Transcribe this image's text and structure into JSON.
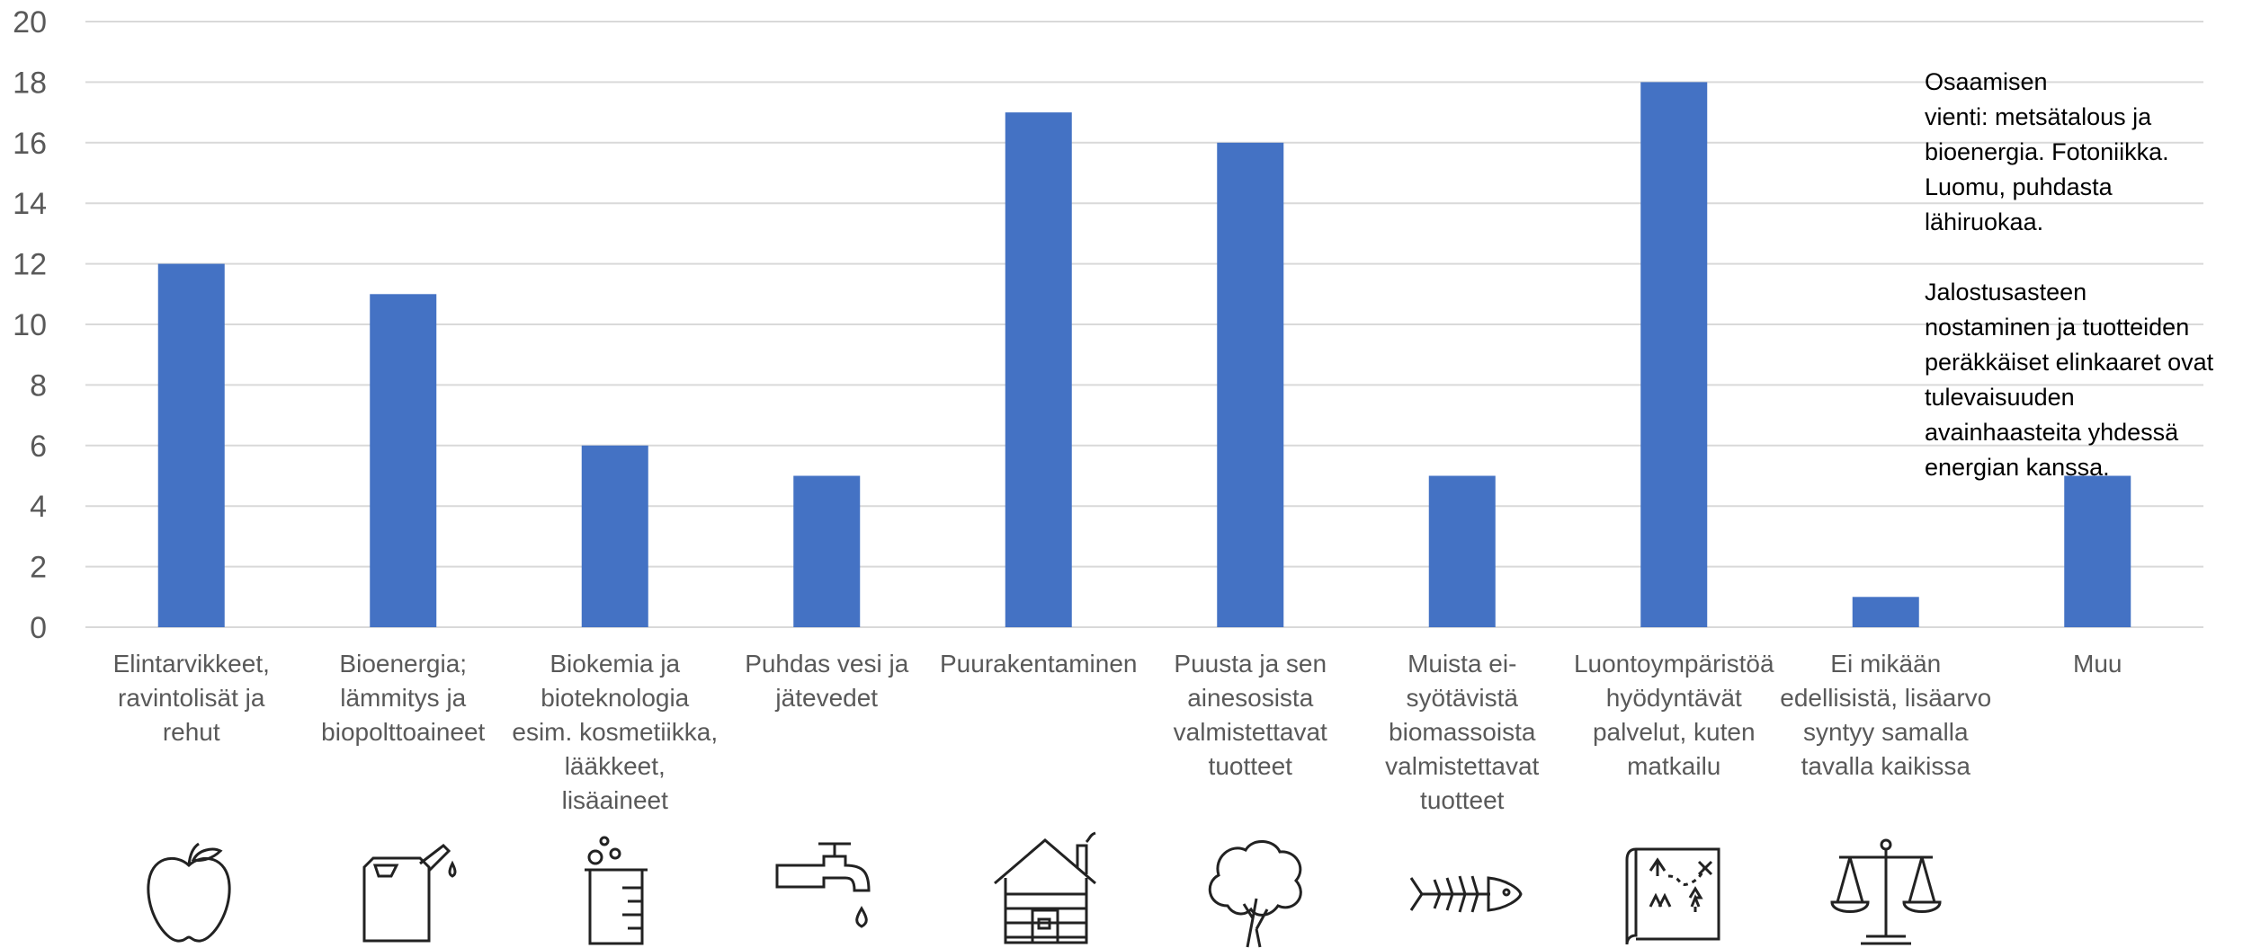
{
  "chart_data": {
    "type": "bar",
    "categories": [
      "Elintarvikkeet, ravintolisät ja rehut",
      "Bioenergia; lämmitys ja biopolttoaineet",
      "Biokemia ja bioteknologia esim. kosmetiikka, lääkkeet, lisäaineet",
      "Puhdas vesi ja jätevedet",
      "Puurakentaminen",
      "Puusta ja sen ainesosista valmistettavat tuotteet",
      "Muista ei-syötävistä biomassoista valmistettavat tuotteet",
      "Luontoympäristöä hyödyntävät palvelut, kuten matkailu",
      "Ei mikään edellisistä, lisäarvo syntyy samalla tavalla kaikissa",
      "Muu"
    ],
    "category_label_lines": [
      [
        "Elintarvikkeet,",
        "ravintolisät ja",
        "rehut"
      ],
      [
        "Bioenergia;",
        "lämmitys ja",
        "biopolttoaineet"
      ],
      [
        "Biokemia ja",
        "bioteknologia",
        "esim. kosmetiikka,",
        "lääkkeet,",
        "lisäaineet"
      ],
      [
        "Puhdas vesi ja",
        "jätevedet"
      ],
      [
        "Puurakentaminen"
      ],
      [
        "Puusta ja sen",
        "ainesosista",
        "valmistettavat",
        "tuotteet"
      ],
      [
        "Muista ei-",
        "syötävistä",
        "biomassoista",
        "valmistettavat",
        "tuotteet"
      ],
      [
        "Luontoympäristöä",
        "hyödyntävät",
        "palvelut, kuten",
        "matkailu"
      ],
      [
        "Ei mikään",
        "edellisistä, lisäarvo",
        "syntyy samalla",
        "tavalla kaikissa"
      ],
      [
        "Muu"
      ]
    ],
    "values": [
      12,
      11,
      6,
      5,
      17,
      16,
      5,
      18,
      1,
      5
    ],
    "ylim": [
      0,
      20
    ],
    "yticks": [
      "0",
      "2",
      "4",
      "6",
      "8",
      "10",
      "12",
      "14",
      "16",
      "18",
      "20"
    ],
    "grid": true,
    "bar_color": "#4472C4",
    "annotation": "Osaamisen\nvienti: metsätalous ja\nbioenergia. Fotoniikka.\nLuomu, puhdasta\nlähiruokaa.\n\nJalostusasteen\nnostaminen ja tuotteiden\nperäkkäiset elinkaaret ovat\ntulevaisuuden\navainhaasteita yhdessä\nenergian kanssa."
  },
  "icons": [
    "apple-icon",
    "fuel-canister-icon",
    "beaker-icon",
    "water-tap-icon",
    "log-cabin-icon",
    "tree-icon",
    "fish-bone-icon",
    "treasure-map-icon",
    "balance-scale-icon"
  ]
}
